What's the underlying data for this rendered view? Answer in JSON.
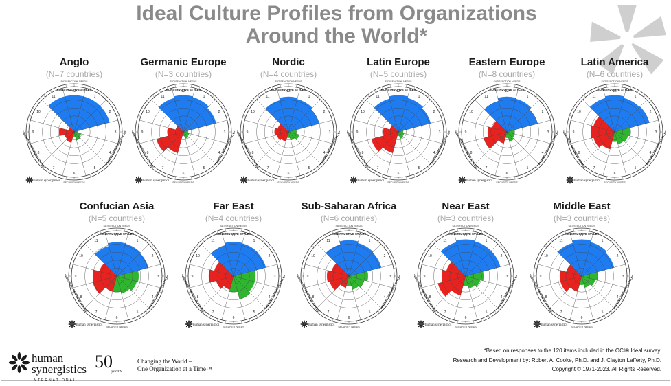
{
  "title_line1": "Ideal Culture Profiles from Organizations",
  "title_line2": "Around the World*",
  "chart_data": [
    {
      "type": "circumplex",
      "name": "Anglo",
      "subtitle": "(N=7 countries)",
      "constructive": [
        0.92,
        0.92,
        0.92,
        0.92
      ],
      "passive": [
        0.1,
        0.18,
        0.22,
        0.12
      ],
      "aggressive": [
        0.28,
        0.25,
        0.38,
        0.15
      ]
    },
    {
      "type": "circumplex",
      "name": "Germanic Europe",
      "subtitle": "(N=3 countries)",
      "constructive": [
        0.88,
        0.92,
        0.9,
        0.85
      ],
      "passive": [
        0.12,
        0.15,
        0.18,
        0.1
      ],
      "aggressive": [
        0.55,
        0.7,
        0.4,
        0.2
      ]
    },
    {
      "type": "circumplex",
      "name": "Nordic",
      "subtitle": "(N=4 countries)",
      "constructive": [
        0.82,
        0.88,
        0.85,
        0.8
      ],
      "passive": [
        0.2,
        0.28,
        0.22,
        0.15
      ],
      "aggressive": [
        0.25,
        0.3,
        0.35,
        0.28
      ]
    },
    {
      "type": "circumplex",
      "name": "Latin Europe",
      "subtitle": "(N=5 countries)",
      "constructive": [
        0.86,
        0.92,
        0.88,
        0.84
      ],
      "passive": [
        0.12,
        0.15,
        0.18,
        0.1
      ],
      "aggressive": [
        0.55,
        0.7,
        0.38,
        0.22
      ]
    },
    {
      "type": "circumplex",
      "name": "Eastern Europe",
      "subtitle": "(N=8 countries)",
      "constructive": [
        0.8,
        0.88,
        0.86,
        0.8
      ],
      "passive": [
        0.18,
        0.2,
        0.25,
        0.15
      ],
      "aggressive": [
        0.3,
        0.6,
        0.48,
        0.38
      ]
    },
    {
      "type": "circumplex",
      "name": "Latin America",
      "subtitle": "(N=6 countries)",
      "constructive": [
        0.88,
        0.92,
        0.88,
        0.9
      ],
      "passive": [
        0.4,
        0.35,
        0.32,
        0.25
      ],
      "aggressive": [
        0.45,
        0.55,
        0.6,
        0.55
      ]
    },
    {
      "type": "circumplex",
      "name": "Confucian Asia",
      "subtitle": "(N=5 countries)",
      "constructive": [
        0.78,
        0.85,
        0.84,
        0.82
      ],
      "passive": [
        0.55,
        0.52,
        0.45,
        0.4
      ],
      "aggressive": [
        0.4,
        0.62,
        0.6,
        0.45
      ]
    },
    {
      "type": "circumplex",
      "name": "Far East",
      "subtitle": "(N=4 countries)",
      "constructive": [
        0.8,
        0.86,
        0.85,
        0.84
      ],
      "passive": [
        0.55,
        0.55,
        0.6,
        0.4
      ],
      "aggressive": [
        0.35,
        0.45,
        0.62,
        0.5
      ]
    },
    {
      "type": "circumplex",
      "name": "Sub-Saharan Africa",
      "subtitle": "(N=6 countries)",
      "constructive": [
        0.82,
        0.9,
        0.86,
        0.84
      ],
      "passive": [
        0.48,
        0.4,
        0.35,
        0.25
      ],
      "aggressive": [
        0.3,
        0.5,
        0.55,
        0.45
      ]
    },
    {
      "type": "circumplex",
      "name": "Near East",
      "subtitle": "(N=3 countries)",
      "constructive": [
        0.88,
        0.92,
        0.9,
        0.9
      ],
      "passive": [
        0.45,
        0.38,
        0.32,
        0.25
      ],
      "aggressive": [
        0.5,
        0.72,
        0.6,
        0.5
      ]
    },
    {
      "type": "circumplex",
      "name": "Middle East",
      "subtitle": "(N=3 countries)",
      "constructive": [
        0.86,
        0.92,
        0.88,
        0.84
      ],
      "passive": [
        0.4,
        0.35,
        0.3,
        0.22
      ],
      "aggressive": [
        0.4,
        0.55,
        0.55,
        0.4
      ]
    }
  ],
  "circle_labels": {
    "satisfaction": "SATISFACTION NEEDS",
    "constructive": "CONSTRUCTIVE STYLES",
    "security": "SECURITY NEEDS",
    "passive": "PASSIVE / DEFENSIVE STYLES",
    "aggressive": "AGGRESSIVE / DEFENSIVE STYLES",
    "clock": [
      "12",
      "1",
      "2",
      "3",
      "4",
      "5",
      "6",
      "7",
      "8",
      "9",
      "10",
      "11"
    ]
  },
  "panel_brand": "human synergistics",
  "footnote_1": "*Based on responses to the 120 items included in the OCI® Ideal survey.",
  "footnote_2": "Research and Development by: Robert A. Cooke, Ph.D. and J. Clayton Lafferty, Ph.D.",
  "footnote_3": "Copyright © 1971-2023.  All Rights Reserved.",
  "brand_line1": "human",
  "brand_line2": "synergistics",
  "brand_intl": "INTERNATIONAL",
  "anniv_num": "50",
  "anniv_word": "years",
  "tagline_1": "Changing the World –",
  "tagline_2": "One Organization at a Time™",
  "colors": {
    "constructive": "#1e7cf0",
    "aggressive": "#e8231f",
    "passive": "#2fb52f",
    "title": "#8a8a8a",
    "logo": "#c8c8c8"
  }
}
